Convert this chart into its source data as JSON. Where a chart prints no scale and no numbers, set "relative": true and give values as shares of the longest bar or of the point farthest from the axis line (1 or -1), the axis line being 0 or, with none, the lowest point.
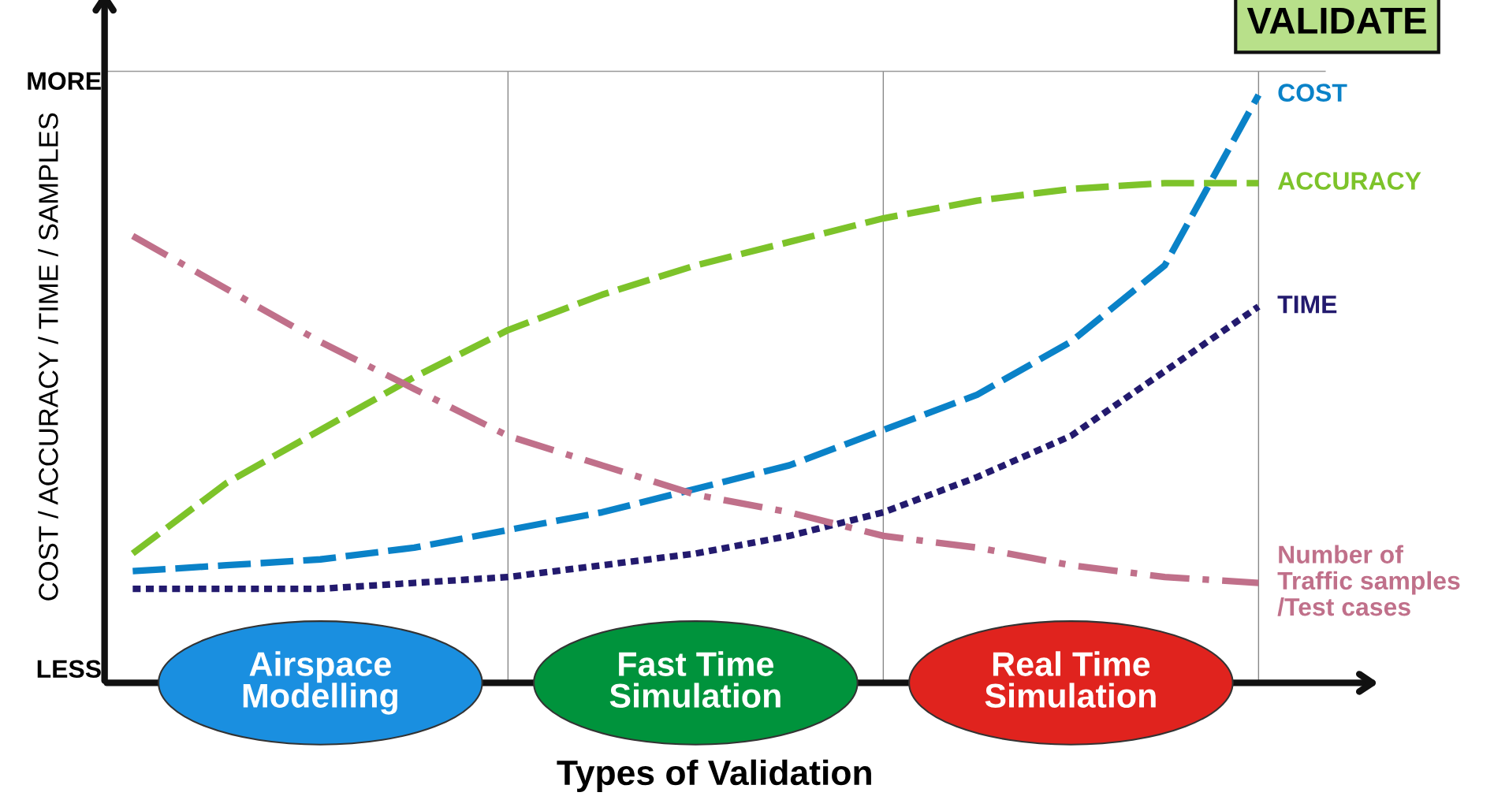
{
  "chart_data": {
    "type": "line",
    "relative": true,
    "xlabel": "Types of Validation",
    "ylabel": "COST / ACCURACY / TIME / SAMPLES",
    "categories": [
      null,
      null,
      "Airspace\nModelling",
      null,
      null,
      null,
      "Fast Time\nSimulation",
      null,
      null,
      null,
      "Real Time\nSimulation",
      null,
      null
    ],
    "annotations": [
      "MORE",
      "LESS",
      "VALIDATE"
    ],
    "grid": "x",
    "series": [
      {
        "name": "COST",
        "color": "#0a82c8",
        "line_style": "dashed",
        "values": [
          0.19,
          0.2,
          0.21,
          0.23,
          0.26,
          0.29,
          0.33,
          0.37,
          0.43,
          0.49,
          0.58,
          0.71,
          1.0
        ]
      },
      {
        "name": "ACCURACY",
        "color": "#7dc32a",
        "line_style": "dashed",
        "values": [
          0.22,
          0.34,
          0.43,
          0.52,
          0.6,
          0.66,
          0.71,
          0.75,
          0.79,
          0.82,
          0.84,
          0.85,
          0.85
        ]
      },
      {
        "name": "TIME",
        "color": "#231a6e",
        "line_style": "dotted",
        "values": [
          0.16,
          0.16,
          0.16,
          0.17,
          0.18,
          0.2,
          0.22,
          0.25,
          0.29,
          0.35,
          0.42,
          0.53,
          0.64
        ]
      },
      {
        "name": "Number of\nTraffic samples\n/Test cases",
        "color": "#c0708a",
        "line_style": "dashdot",
        "values": [
          0.76,
          0.67,
          0.58,
          0.5,
          0.42,
          0.37,
          0.32,
          0.29,
          0.25,
          0.23,
          0.2,
          0.18,
          0.17
        ]
      }
    ]
  }
}
